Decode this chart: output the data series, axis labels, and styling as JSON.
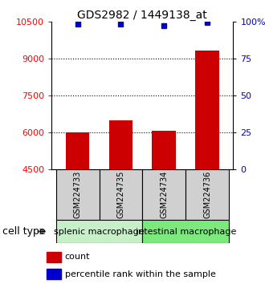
{
  "title": "GDS2982 / 1449138_at",
  "samples": [
    "GSM224733",
    "GSM224735",
    "GSM224734",
    "GSM224736"
  ],
  "counts": [
    5980,
    6480,
    6060,
    9300
  ],
  "percentile_ranks": [
    98,
    98,
    97,
    99
  ],
  "ylim_left": [
    4500,
    10500
  ],
  "ylim_right": [
    0,
    100
  ],
  "yticks_left": [
    4500,
    6000,
    7500,
    9000,
    10500
  ],
  "yticks_right": [
    0,
    25,
    50,
    75,
    100
  ],
  "ytick_labels_right": [
    "0",
    "25",
    "50",
    "75",
    "100%"
  ],
  "bar_color": "#cc0000",
  "dot_color": "#0000cc",
  "bar_width": 0.55,
  "groups": [
    {
      "label": "splenic macrophage",
      "samples": [
        0,
        1
      ],
      "color": "#c8f0c8"
    },
    {
      "label": "intestinal macrophage",
      "samples": [
        2,
        3
      ],
      "color": "#7de87d"
    }
  ],
  "cell_type_label": "cell type",
  "legend_count_label": "count",
  "legend_pct_label": "percentile rank within the sample",
  "background_color": "#ffffff",
  "title_fontsize": 10,
  "tick_fontsize": 8,
  "sample_fontsize": 7,
  "group_fontsize": 8,
  "legend_fontsize": 8
}
